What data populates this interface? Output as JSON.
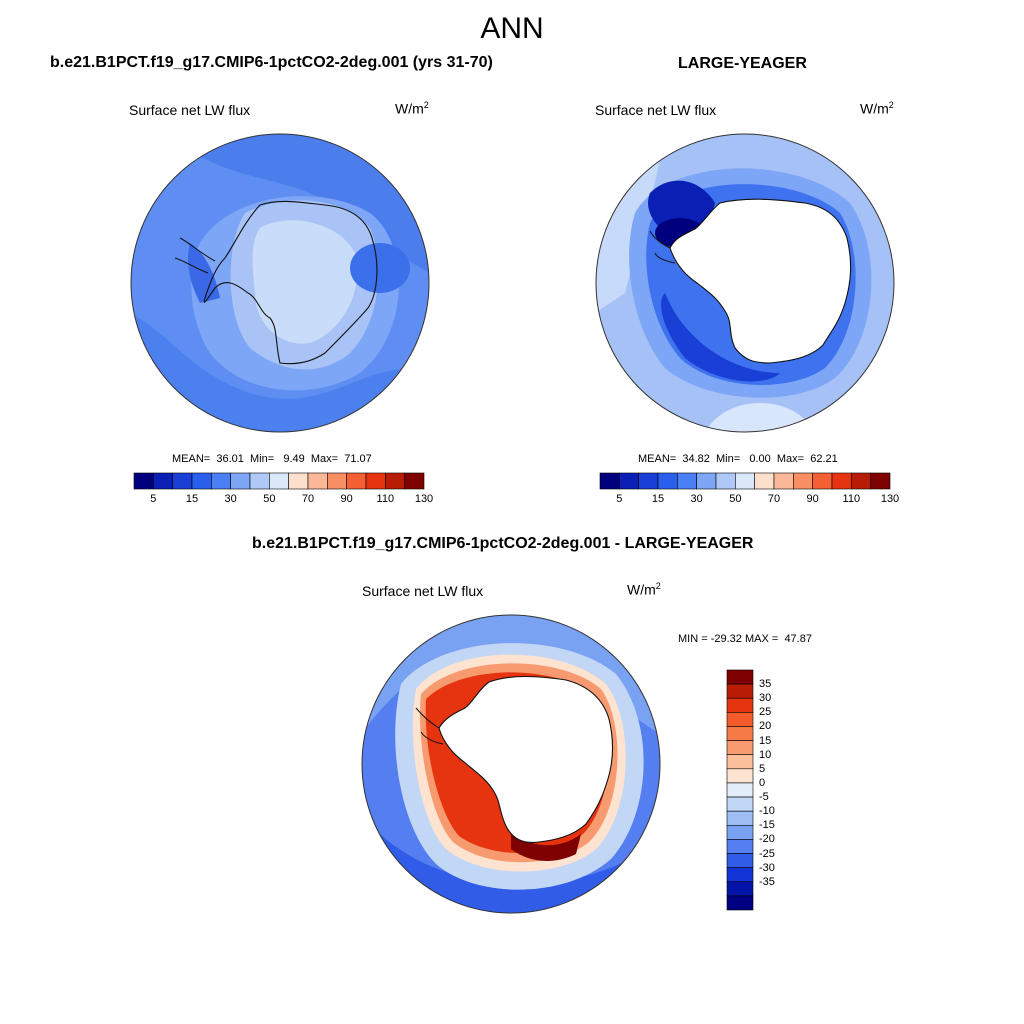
{
  "page_title": "ANN",
  "variable_label": "Surface net LW flux",
  "units": {
    "base": "W/m",
    "superscript": "2"
  },
  "panels": [
    {
      "case_title": "b.e21.B1PCT.f19_g17.CMIP6-1pctCO2-2deg.001 (yrs 31-70)",
      "stats": {
        "mean_label": "MEAN=",
        "mean": "36.01",
        "min_label": "Min=",
        "min": "9.49",
        "max_label": "Max=",
        "max": "71.07"
      }
    },
    {
      "case_title": "LARGE-YEAGER",
      "stats": {
        "mean_label": "MEAN=",
        "mean": "34.82",
        "min_label": "Min=",
        "min": "0.00",
        "max_label": "Max=",
        "max": "62.21"
      }
    },
    {
      "case_title": "b.e21.B1PCT.f19_g17.CMIP6-1pctCO2-2deg.001 - LARGE-YEAGER",
      "stats": {
        "min_label": "MIN =",
        "min": "-29.32",
        "max_label": "MAX =",
        "max": "47.87"
      }
    }
  ],
  "colorbar_field": {
    "colors": [
      "#00007f",
      "#0a1fb4",
      "#1a3fd6",
      "#2a5fee",
      "#4a80f4",
      "#7ea6f6",
      "#afc8f7",
      "#dbe8fa",
      "#fde0cc",
      "#fbb898",
      "#f88e64",
      "#f45f34",
      "#e63410",
      "#b81c04",
      "#7f0000"
    ],
    "tick_labels": [
      "5",
      "15",
      "30",
      "50",
      "70",
      "90",
      "110",
      "130"
    ]
  },
  "colorbar_diff": {
    "colors_top_to_bottom": [
      "#7f0000",
      "#b81c04",
      "#e63410",
      "#f45b2a",
      "#f57a46",
      "#f89a70",
      "#fbbf9c",
      "#fde3d0",
      "#e4eefb",
      "#c2d6f6",
      "#9fbef4",
      "#7aa2f2",
      "#557ff0",
      "#305ce8",
      "#1233d6",
      "#0514a8",
      "#000080"
    ],
    "tick_labels": [
      "35",
      "30",
      "25",
      "20",
      "15",
      "10",
      "5",
      "0",
      "-5",
      "-10",
      "-15",
      "-20",
      "-25",
      "-30",
      "-35"
    ]
  },
  "map_legend": {
    "land_label": "Antarctica"
  }
}
